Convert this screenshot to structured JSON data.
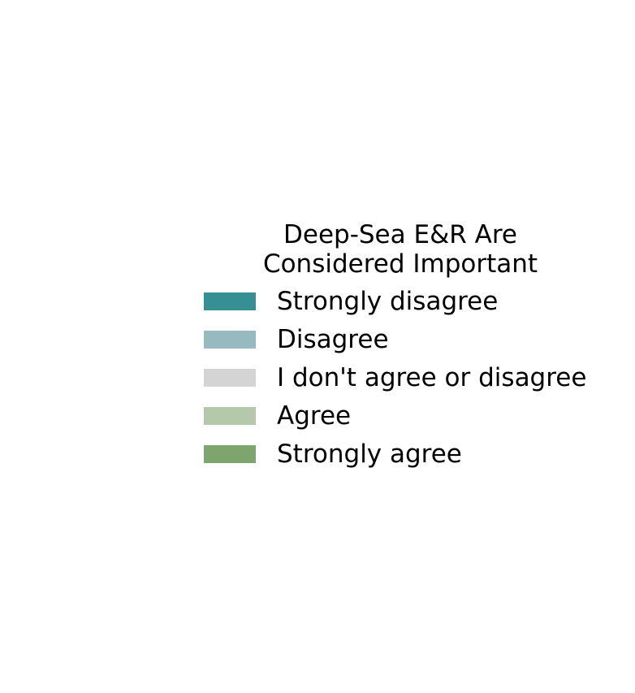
{
  "chart_data": {
    "type": "bar",
    "title": "",
    "legend": {
      "title_lines": [
        "Deep-Sea E&R Are",
        "Considered Important"
      ],
      "placement": "center-right",
      "entries": [
        {
          "label": "Strongly disagree",
          "color": "#358f94"
        },
        {
          "label": "Disagree",
          "color": "#96bac0"
        },
        {
          "label": "I don't agree or disagree",
          "color": "#d4d4d4"
        },
        {
          "label": "Agree",
          "color": "#b5c8aa"
        },
        {
          "label": "Strongly agree",
          "color": "#7fa56f"
        }
      ]
    },
    "series": [
      {
        "name": "Strongly disagree",
        "values": []
      },
      {
        "name": "Disagree",
        "values": []
      },
      {
        "name": "I don't agree or disagree",
        "values": []
      },
      {
        "name": "Agree",
        "values": []
      },
      {
        "name": "Strongly agree",
        "values": []
      }
    ]
  }
}
